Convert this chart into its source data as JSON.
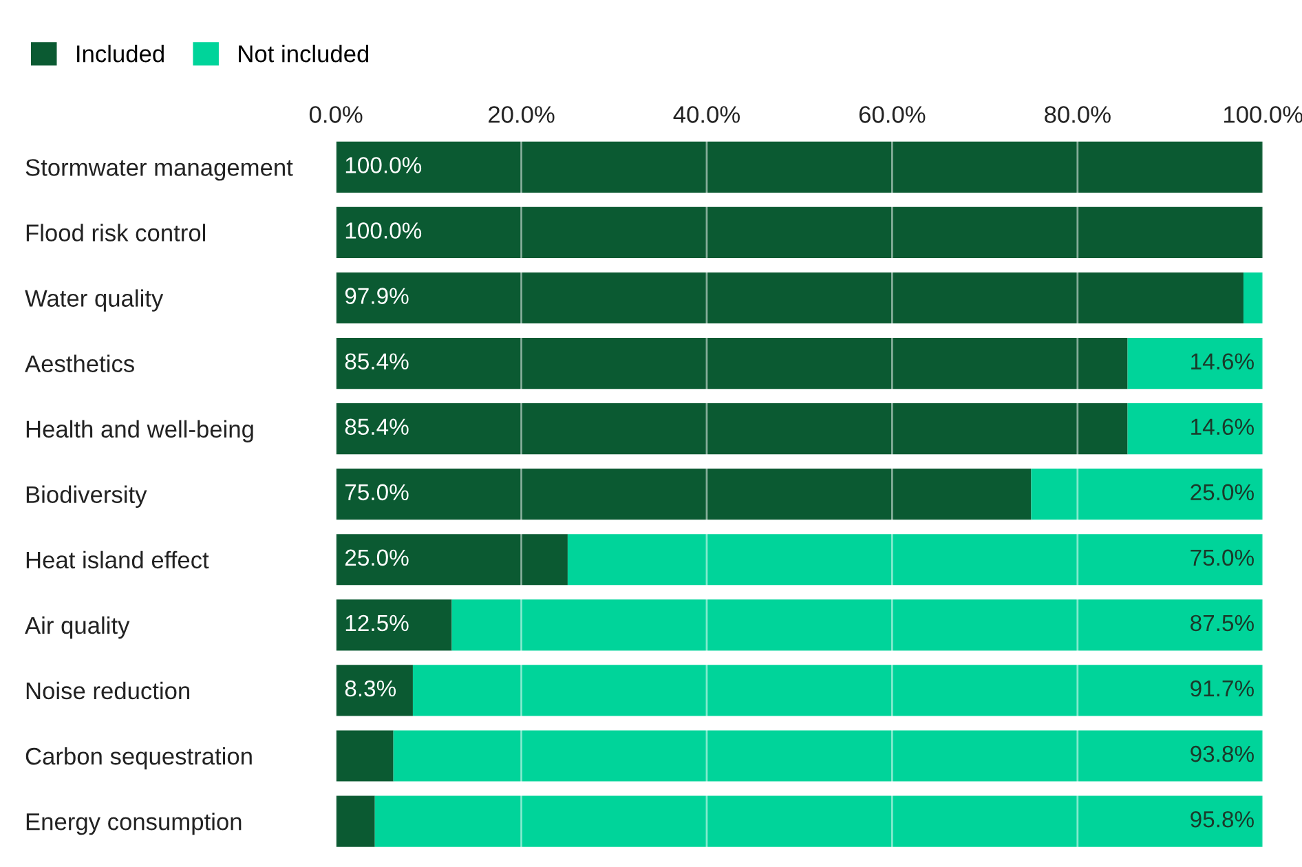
{
  "chart_data": {
    "type": "bar",
    "orientation": "horizontal",
    "stacked": true,
    "categories": [
      "Stormwater management",
      "Flood risk control",
      "Water quality",
      "Aesthetics",
      "Health and well-being",
      "Biodiversity",
      "Heat island effect",
      "Air quality",
      "Noise reduction",
      "Carbon sequestration",
      "Energy consumption"
    ],
    "series": [
      {
        "name": "Included",
        "color": "#0b5a32",
        "values": [
          100.0,
          100.0,
          97.9,
          85.4,
          85.4,
          75.0,
          25.0,
          12.5,
          8.3,
          6.2,
          4.2
        ],
        "value_labels": [
          "100.0%",
          "100.0%",
          "97.9%",
          "85.4%",
          "85.4%",
          "75.0%",
          "25.0%",
          "12.5%",
          "8.3%",
          null,
          null
        ]
      },
      {
        "name": "Not included",
        "color": "#00d49a",
        "values": [
          0.0,
          0.0,
          2.1,
          14.6,
          14.6,
          25.0,
          75.0,
          87.5,
          91.7,
          93.8,
          95.8
        ],
        "value_labels": [
          null,
          null,
          null,
          "14.6%",
          "14.6%",
          "25.0%",
          "75.0%",
          "87.5%",
          "91.7%",
          "93.8%",
          "95.8%"
        ]
      }
    ],
    "xlim": [
      0,
      100
    ],
    "xticks": [
      {
        "value": 0,
        "label": "0.0%"
      },
      {
        "value": 20,
        "label": "20.0%"
      },
      {
        "value": 40,
        "label": "40.0%"
      },
      {
        "value": 60,
        "label": "60.0%"
      },
      {
        "value": 80,
        "label": "80.0%"
      },
      {
        "value": 100,
        "label": "100.0%"
      }
    ],
    "grid": "x",
    "legend": "top left"
  }
}
